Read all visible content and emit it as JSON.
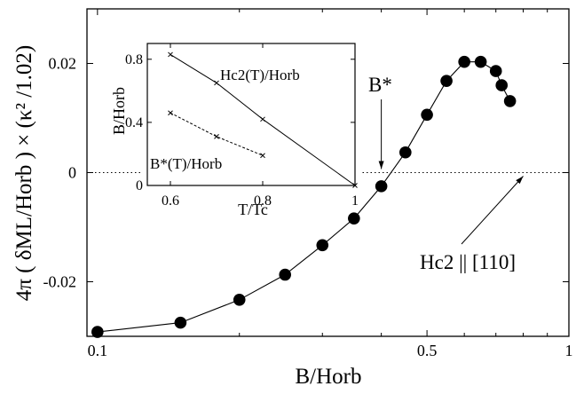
{
  "chart_data": [
    {
      "type": "scatter",
      "xlabel": "B/Horb",
      "ylabel": "4π ( δML/Horb ) × (κ² /1.02)",
      "x_scale": "log",
      "xlim": [
        0.095,
        1.0
      ],
      "ylim": [
        -0.03,
        0.03
      ],
      "x_ticks": [
        0.1,
        0.5,
        1
      ],
      "x_tick_labels": [
        "0.1",
        "0.5",
        "1"
      ],
      "y_ticks": [
        -0.02,
        0,
        0.02
      ],
      "y_tick_labels": [
        "-0.02",
        "0",
        "0.02"
      ],
      "zero_line": "dotted",
      "series": [
        {
          "marker": "filled-circle",
          "x": [
            0.1,
            0.15,
            0.2,
            0.25,
            0.3,
            0.35,
            0.4,
            0.45,
            0.5,
            0.55,
            0.6,
            0.65,
            0.7,
            0.72,
            0.75
          ],
          "y": [
            -0.0292,
            -0.0275,
            -0.0233,
            -0.0187,
            -0.0133,
            -0.0084,
            -0.0025,
            0.0037,
            0.0106,
            0.0168,
            0.0203,
            0.0203,
            0.0186,
            0.016,
            0.0131
          ]
        }
      ],
      "annotations": [
        {
          "text": "B*",
          "arrow_to_x": 0.4,
          "arrow_to_y": 0
        },
        {
          "text": "Hc2 || [110]",
          "arrow_to_x": 0.8,
          "arrow_to_y": 0
        }
      ]
    },
    {
      "type": "line",
      "placement": "inset",
      "xlabel": "T/Tc",
      "ylabel": "B/Horb",
      "xlim": [
        0.6,
        1.0
      ],
      "ylim": [
        0,
        0.9
      ],
      "x_ticks": [
        0.6,
        0.8,
        1
      ],
      "x_tick_labels": [
        "0.6",
        "0.8",
        "1"
      ],
      "y_ticks": [
        0,
        0.4,
        0.8
      ],
      "y_tick_labels": [
        "0",
        "0.4",
        "0.8"
      ],
      "series": [
        {
          "name": "Hc2(T)/Horb",
          "style": "solid",
          "marker": "x",
          "x": [
            0.6,
            0.7,
            0.8,
            1.0
          ],
          "y": [
            0.83,
            0.65,
            0.42,
            0.0
          ]
        },
        {
          "name": "B*(T)/Horb",
          "style": "dashed",
          "marker": "x",
          "x": [
            0.6,
            0.7,
            0.8
          ],
          "y": [
            0.46,
            0.31,
            0.19
          ]
        }
      ]
    }
  ],
  "colors": {
    "ink": "#000000",
    "background": "#ffffff"
  }
}
